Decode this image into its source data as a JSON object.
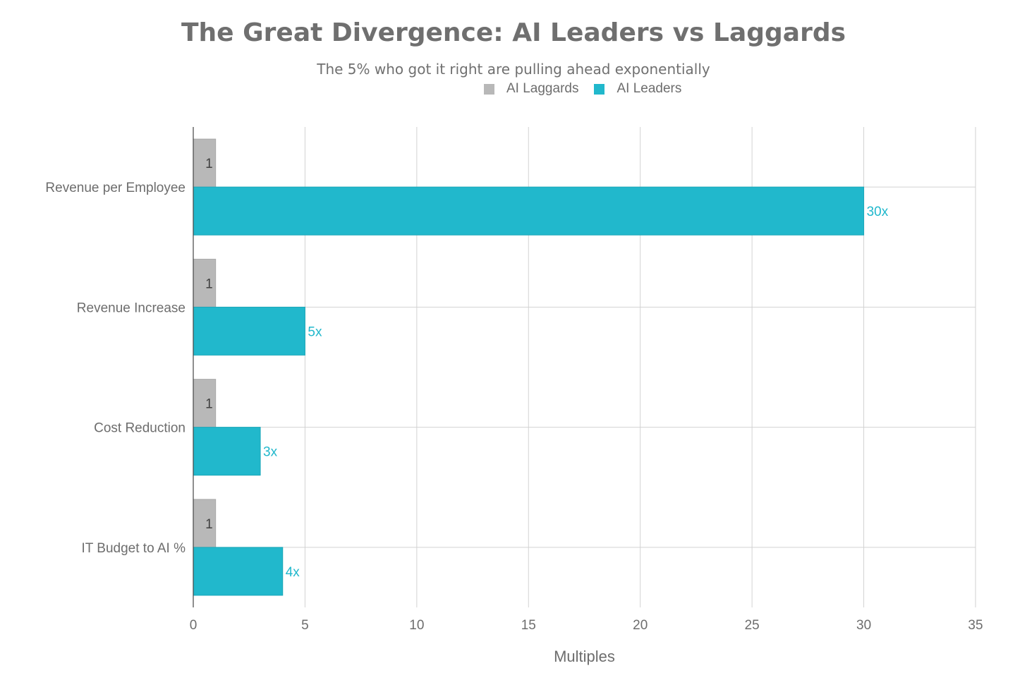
{
  "chart_data": {
    "type": "bar",
    "orientation": "horizontal",
    "title": "The Great Divergence: AI Leaders vs Laggards",
    "subtitle": "The 5% who got it right are pulling ahead exponentially",
    "xlabel": "Multiples",
    "ylabel": "",
    "xlim": [
      0,
      35
    ],
    "xticks": [
      0,
      5,
      10,
      15,
      20,
      25,
      30,
      35
    ],
    "categories": [
      "Revenue per Employee",
      "Revenue Increase",
      "Cost Reduction",
      "IT Budget to AI %"
    ],
    "series": [
      {
        "name": "AI Laggards",
        "values": [
          1,
          1,
          1,
          1
        ],
        "labels": [
          "1",
          "1",
          "1",
          "1"
        ],
        "color": "#b8b8b8",
        "label_color": "#404040"
      },
      {
        "name": "AI Leaders",
        "values": [
          30,
          5,
          3,
          4
        ],
        "labels": [
          "30x",
          "5x",
          "3x",
          "4x"
        ],
        "color": "#21b8cc",
        "label_color": "#21b8cc"
      }
    ],
    "legend": "top-center",
    "grid": true
  }
}
